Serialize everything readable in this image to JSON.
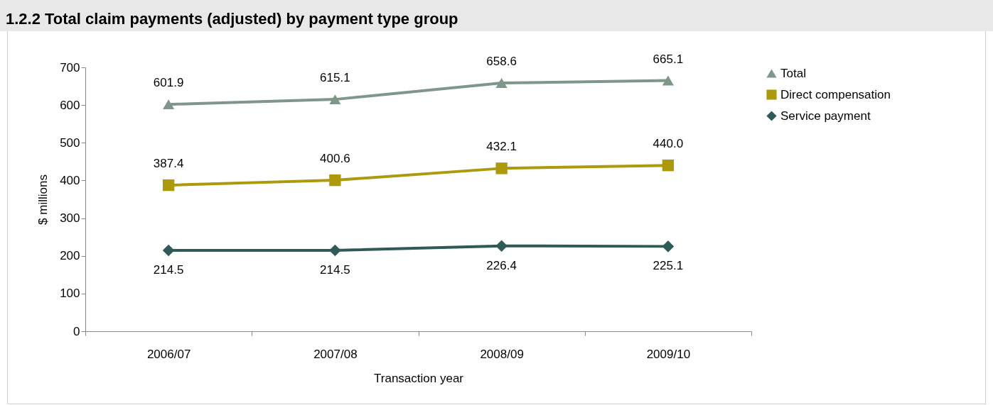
{
  "chart_data": {
    "type": "line",
    "title": "1.2.2 Total claim payments (adjusted) by payment type group",
    "xlabel": "Transaction year",
    "ylabel": "$ millions",
    "categories": [
      "2006/07",
      "2007/08",
      "2008/09",
      "2009/10"
    ],
    "series": [
      {
        "name": "Total",
        "color": "#7f968a",
        "marker": "triangle",
        "values": [
          601.9,
          615.1,
          658.6,
          665.1
        ],
        "value_labels": [
          "601.9",
          "615.1",
          "658.6",
          "665.1"
        ]
      },
      {
        "name": "Direct compensation",
        "color": "#ad9a0c",
        "marker": "square",
        "values": [
          387.4,
          400.6,
          432.1,
          440.0
        ],
        "value_labels": [
          "387.4",
          "400.6",
          "432.1",
          "440.0"
        ]
      },
      {
        "name": "Service payment",
        "color": "#2f5a58",
        "marker": "diamond",
        "values": [
          214.5,
          214.5,
          226.4,
          225.1
        ],
        "value_labels": [
          "214.5",
          "214.5",
          "226.4",
          "225.1"
        ]
      }
    ],
    "ylim": [
      0,
      700
    ],
    "yticks": [
      0,
      100,
      200,
      300,
      400,
      500,
      600,
      700
    ],
    "grid": false,
    "legend": "right",
    "line_style": "solid"
  }
}
